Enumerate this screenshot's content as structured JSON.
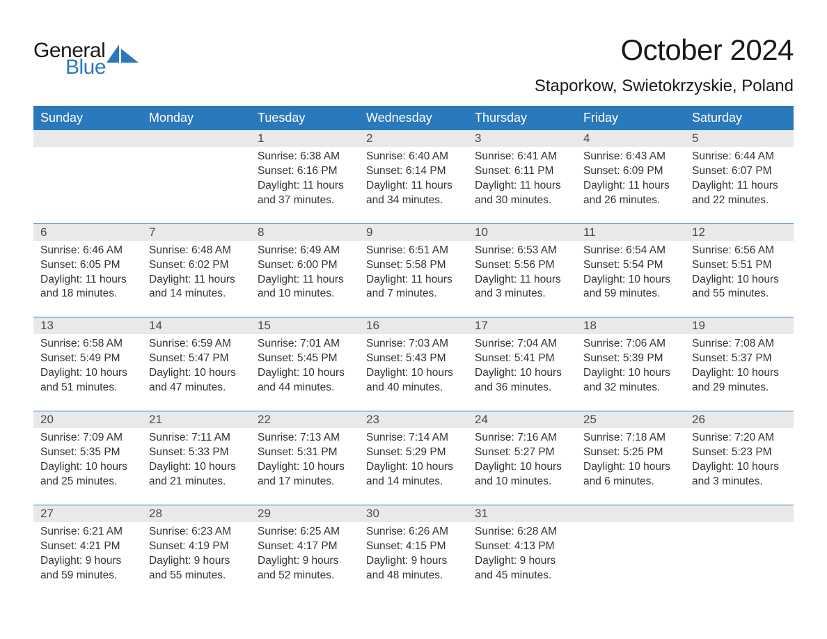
{
  "logo": {
    "text1": "General",
    "text2": "Blue",
    "accent_color": "#2b79bd"
  },
  "title": "October 2024",
  "location": "Staporkow, Swietokrzyskie, Poland",
  "colors": {
    "header_bg": "#2b79bd",
    "header_text": "#ffffff",
    "daynum_bg": "#e9e9e9",
    "daynum_text": "#4a4a4a",
    "body_text": "#333333",
    "row_border": "#2b79bd",
    "page_bg": "#ffffff"
  },
  "weekdays": [
    "Sunday",
    "Monday",
    "Tuesday",
    "Wednesday",
    "Thursday",
    "Friday",
    "Saturday"
  ],
  "weeks": [
    [
      null,
      null,
      {
        "n": "1",
        "sr": "6:38 AM",
        "ss": "6:16 PM",
        "dl1": "11 hours",
        "dl2": "and 37 minutes."
      },
      {
        "n": "2",
        "sr": "6:40 AM",
        "ss": "6:14 PM",
        "dl1": "11 hours",
        "dl2": "and 34 minutes."
      },
      {
        "n": "3",
        "sr": "6:41 AM",
        "ss": "6:11 PM",
        "dl1": "11 hours",
        "dl2": "and 30 minutes."
      },
      {
        "n": "4",
        "sr": "6:43 AM",
        "ss": "6:09 PM",
        "dl1": "11 hours",
        "dl2": "and 26 minutes."
      },
      {
        "n": "5",
        "sr": "6:44 AM",
        "ss": "6:07 PM",
        "dl1": "11 hours",
        "dl2": "and 22 minutes."
      }
    ],
    [
      {
        "n": "6",
        "sr": "6:46 AM",
        "ss": "6:05 PM",
        "dl1": "11 hours",
        "dl2": "and 18 minutes."
      },
      {
        "n": "7",
        "sr": "6:48 AM",
        "ss": "6:02 PM",
        "dl1": "11 hours",
        "dl2": "and 14 minutes."
      },
      {
        "n": "8",
        "sr": "6:49 AM",
        "ss": "6:00 PM",
        "dl1": "11 hours",
        "dl2": "and 10 minutes."
      },
      {
        "n": "9",
        "sr": "6:51 AM",
        "ss": "5:58 PM",
        "dl1": "11 hours",
        "dl2": "and 7 minutes."
      },
      {
        "n": "10",
        "sr": "6:53 AM",
        "ss": "5:56 PM",
        "dl1": "11 hours",
        "dl2": "and 3 minutes."
      },
      {
        "n": "11",
        "sr": "6:54 AM",
        "ss": "5:54 PM",
        "dl1": "10 hours",
        "dl2": "and 59 minutes."
      },
      {
        "n": "12",
        "sr": "6:56 AM",
        "ss": "5:51 PM",
        "dl1": "10 hours",
        "dl2": "and 55 minutes."
      }
    ],
    [
      {
        "n": "13",
        "sr": "6:58 AM",
        "ss": "5:49 PM",
        "dl1": "10 hours",
        "dl2": "and 51 minutes."
      },
      {
        "n": "14",
        "sr": "6:59 AM",
        "ss": "5:47 PM",
        "dl1": "10 hours",
        "dl2": "and 47 minutes."
      },
      {
        "n": "15",
        "sr": "7:01 AM",
        "ss": "5:45 PM",
        "dl1": "10 hours",
        "dl2": "and 44 minutes."
      },
      {
        "n": "16",
        "sr": "7:03 AM",
        "ss": "5:43 PM",
        "dl1": "10 hours",
        "dl2": "and 40 minutes."
      },
      {
        "n": "17",
        "sr": "7:04 AM",
        "ss": "5:41 PM",
        "dl1": "10 hours",
        "dl2": "and 36 minutes."
      },
      {
        "n": "18",
        "sr": "7:06 AM",
        "ss": "5:39 PM",
        "dl1": "10 hours",
        "dl2": "and 32 minutes."
      },
      {
        "n": "19",
        "sr": "7:08 AM",
        "ss": "5:37 PM",
        "dl1": "10 hours",
        "dl2": "and 29 minutes."
      }
    ],
    [
      {
        "n": "20",
        "sr": "7:09 AM",
        "ss": "5:35 PM",
        "dl1": "10 hours",
        "dl2": "and 25 minutes."
      },
      {
        "n": "21",
        "sr": "7:11 AM",
        "ss": "5:33 PM",
        "dl1": "10 hours",
        "dl2": "and 21 minutes."
      },
      {
        "n": "22",
        "sr": "7:13 AM",
        "ss": "5:31 PM",
        "dl1": "10 hours",
        "dl2": "and 17 minutes."
      },
      {
        "n": "23",
        "sr": "7:14 AM",
        "ss": "5:29 PM",
        "dl1": "10 hours",
        "dl2": "and 14 minutes."
      },
      {
        "n": "24",
        "sr": "7:16 AM",
        "ss": "5:27 PM",
        "dl1": "10 hours",
        "dl2": "and 10 minutes."
      },
      {
        "n": "25",
        "sr": "7:18 AM",
        "ss": "5:25 PM",
        "dl1": "10 hours",
        "dl2": "and 6 minutes."
      },
      {
        "n": "26",
        "sr": "7:20 AM",
        "ss": "5:23 PM",
        "dl1": "10 hours",
        "dl2": "and 3 minutes."
      }
    ],
    [
      {
        "n": "27",
        "sr": "6:21 AM",
        "ss": "4:21 PM",
        "dl1": "9 hours",
        "dl2": "and 59 minutes."
      },
      {
        "n": "28",
        "sr": "6:23 AM",
        "ss": "4:19 PM",
        "dl1": "9 hours",
        "dl2": "and 55 minutes."
      },
      {
        "n": "29",
        "sr": "6:25 AM",
        "ss": "4:17 PM",
        "dl1": "9 hours",
        "dl2": "and 52 minutes."
      },
      {
        "n": "30",
        "sr": "6:26 AM",
        "ss": "4:15 PM",
        "dl1": "9 hours",
        "dl2": "and 48 minutes."
      },
      {
        "n": "31",
        "sr": "6:28 AM",
        "ss": "4:13 PM",
        "dl1": "9 hours",
        "dl2": "and 45 minutes."
      },
      null,
      null
    ]
  ],
  "labels": {
    "sunrise": "Sunrise: ",
    "sunset": "Sunset: ",
    "daylight": "Daylight: "
  }
}
